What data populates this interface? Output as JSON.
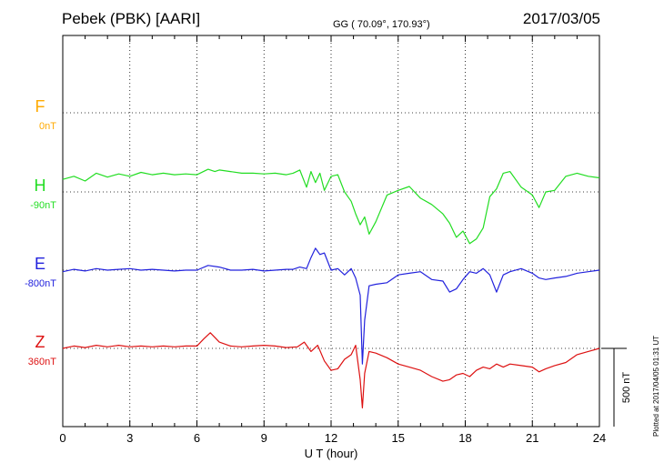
{
  "header": {
    "station": "Pebek (PBK)  [AARI]",
    "coords": "GG ( 70.09°, 170.93°)",
    "date": "2017/03/05"
  },
  "footer_note": "Plotted at 2017/04/05 01:31  UT",
  "chart_data": {
    "type": "line",
    "title": "",
    "xlabel": "U T (hour)",
    "xlim": [
      0,
      24
    ],
    "xticks": [
      "0",
      "3",
      "6",
      "9",
      "12",
      "15",
      "18",
      "21",
      "24"
    ],
    "grid": true,
    "scale_bar": "500 nT",
    "series": [
      {
        "name": "F",
        "baseline_label": "0nT",
        "color": "#ffaa00",
        "x": [],
        "y": []
      },
      {
        "name": "H",
        "baseline_label": "-90nT",
        "color": "#22dd22",
        "x": [
          0,
          0.5,
          1,
          1.5,
          2,
          2.5,
          3,
          3.5,
          4,
          4.5,
          5,
          5.5,
          6,
          6.5,
          6.8,
          7,
          7.5,
          8,
          8.5,
          9,
          9.5,
          10,
          10.3,
          10.6,
          10.9,
          11.1,
          11.3,
          11.5,
          11.7,
          12,
          12.3,
          12.6,
          12.9,
          13.1,
          13.3,
          13.5,
          13.7,
          14,
          14.5,
          15,
          15.5,
          16,
          16.5,
          17,
          17.3,
          17.6,
          17.9,
          18.2,
          18.5,
          18.8,
          19.1,
          19.4,
          19.7,
          20,
          20.5,
          21,
          21.3,
          21.6,
          22,
          22.5,
          23,
          23.5,
          24
        ],
        "y": [
          -10,
          10,
          -20,
          30,
          5,
          25,
          10,
          35,
          20,
          30,
          20,
          25,
          20,
          55,
          40,
          50,
          40,
          30,
          30,
          25,
          30,
          20,
          30,
          50,
          -60,
          40,
          -30,
          30,
          -80,
          10,
          20,
          -90,
          -150,
          -230,
          -300,
          -250,
          -360,
          -280,
          -110,
          -80,
          -55,
          -130,
          -170,
          -230,
          -290,
          -380,
          -340,
          -420,
          -390,
          -320,
          -120,
          -70,
          30,
          40,
          -60,
          -110,
          -190,
          -90,
          -80,
          10,
          30,
          10,
          0
        ]
      },
      {
        "name": "E",
        "baseline_label": "-800nT",
        "color": "#2222dd",
        "x": [
          0,
          0.5,
          1,
          1.5,
          2,
          2.5,
          3,
          3.5,
          4,
          4.5,
          5,
          5.5,
          6,
          6.5,
          7,
          7.5,
          8,
          8.5,
          9,
          9.5,
          10,
          10.3,
          10.6,
          10.9,
          11.1,
          11.3,
          11.5,
          11.7,
          12,
          12.3,
          12.6,
          12.9,
          13.1,
          13.3,
          13.4,
          13.5,
          13.7,
          14,
          14.5,
          15,
          15.5,
          16,
          16.5,
          17,
          17.3,
          17.6,
          17.9,
          18.2,
          18.5,
          18.8,
          19.1,
          19.4,
          19.7,
          20,
          20.5,
          21,
          21.3,
          21.6,
          22,
          22.5,
          23,
          23.5,
          24
        ],
        "y": [
          -810,
          -795,
          -805,
          -790,
          -800,
          -795,
          -790,
          -800,
          -795,
          -800,
          -805,
          -800,
          -800,
          -770,
          -780,
          -800,
          -800,
          -795,
          -805,
          -800,
          -795,
          -795,
          -780,
          -790,
          -720,
          -660,
          -700,
          -690,
          -800,
          -790,
          -830,
          -790,
          -850,
          -960,
          -1400,
          -1120,
          -900,
          -890,
          -880,
          -830,
          -820,
          -810,
          -860,
          -870,
          -940,
          -920,
          -860,
          -810,
          -820,
          -790,
          -830,
          -940,
          -830,
          -810,
          -790,
          -820,
          -850,
          -860,
          -850,
          -840,
          -820,
          -810,
          -800
        ]
      },
      {
        "name": "Z",
        "baseline_label": "360nT",
        "color": "#dd1111",
        "x": [
          0,
          0.5,
          1,
          1.5,
          2,
          2.5,
          3,
          3.5,
          4,
          4.5,
          5,
          5.5,
          6,
          6.3,
          6.6,
          7,
          7.5,
          8,
          8.5,
          9,
          9.5,
          10,
          10.5,
          10.8,
          11.1,
          11.4,
          11.7,
          12,
          12.3,
          12.6,
          12.9,
          13.1,
          13.3,
          13.4,
          13.5,
          13.7,
          14,
          14.5,
          15,
          15.5,
          16,
          16.5,
          17,
          17.3,
          17.6,
          17.9,
          18.2,
          18.5,
          18.8,
          19.1,
          19.4,
          19.7,
          20,
          20.5,
          21,
          21.3,
          21.6,
          22,
          22.5,
          23,
          23.5,
          24
        ],
        "y": [
          360,
          375,
          365,
          380,
          370,
          380,
          370,
          375,
          370,
          375,
          370,
          375,
          375,
          420,
          460,
          400,
          375,
          370,
          375,
          380,
          375,
          365,
          370,
          400,
          340,
          380,
          280,
          220,
          230,
          290,
          320,
          380,
          160,
          -20,
          200,
          340,
          330,
          300,
          260,
          240,
          220,
          180,
          150,
          160,
          190,
          200,
          180,
          220,
          240,
          230,
          260,
          240,
          260,
          250,
          240,
          210,
          230,
          250,
          270,
          320,
          340,
          360
        ]
      }
    ]
  }
}
